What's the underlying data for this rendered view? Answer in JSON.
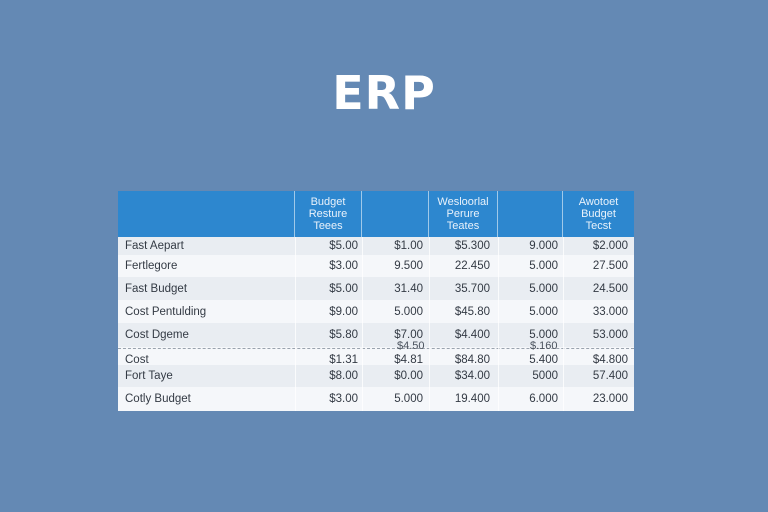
{
  "page": {
    "title": "ERP"
  },
  "table": {
    "headers": [
      "",
      "Budget\nResture\nTeees",
      "",
      "Wesloorlal\nPerure\nTeates",
      "",
      "Awotoet\nBudget\nTecst"
    ],
    "rows": [
      {
        "label": "Fast Aepart",
        "cells": [
          "$5.00",
          "$1.00",
          "$5.300",
          "9.000",
          "$2.000"
        ]
      },
      {
        "label": "Fertlegore",
        "cells": [
          "$3.00",
          "9.500",
          "22.450",
          "5.000",
          "27.500"
        ]
      },
      {
        "label": "Fast Budget",
        "cells": [
          "$5.00",
          "31.40",
          "35.700",
          "5.000",
          "24.500"
        ]
      },
      {
        "label": "Cost Pentulding",
        "cells": [
          "$9.00",
          "5.000",
          "$45.80",
          "5.000",
          "33.000"
        ]
      },
      {
        "label": "Cost Dgeme",
        "cells": [
          "$5.80",
          "$7.00",
          "$4.400",
          "5.000",
          "53.000"
        ]
      },
      {
        "label": "Cost",
        "cells": [
          "$1.31",
          "$4.81",
          "$84.80",
          "5.400",
          "$4.800"
        ]
      },
      {
        "label": "Fort Taye",
        "cells": [
          "$8.00",
          "$0.00",
          "$34.00",
          "5000",
          "57.400"
        ]
      },
      {
        "label": "Cotly Budget",
        "cells": [
          "$3.00",
          "5.000",
          "19.400",
          "6.000",
          "23.000"
        ]
      }
    ],
    "stray_values": [
      "$4.50",
      "$.160"
    ]
  }
}
